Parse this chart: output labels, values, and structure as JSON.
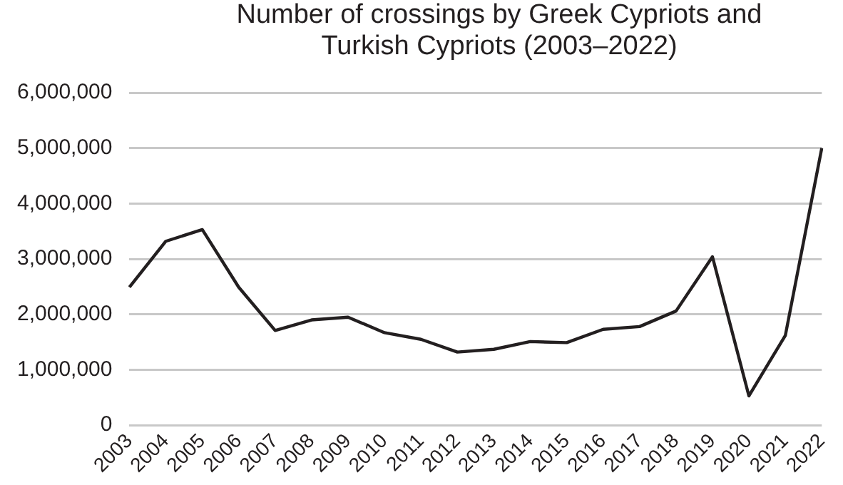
{
  "chart_data": {
    "type": "line",
    "title": "Number of crossings by Greek Cypriots and Turkish Cypriots (2003–2022)",
    "categories": [
      "2003",
      "2004",
      "2005",
      "2006",
      "2007",
      "2008",
      "2009",
      "2010",
      "2011",
      "2012",
      "2013",
      "2014",
      "2015",
      "2016",
      "2017",
      "2018",
      "2019",
      "2020",
      "2021",
      "2022"
    ],
    "series": [
      {
        "color": "#231f20",
        "values": [
          2490000,
          3320000,
          3530000,
          2490000,
          1710000,
          1900000,
          1950000,
          1670000,
          1550000,
          1320000,
          1370000,
          1510000,
          1490000,
          1730000,
          1780000,
          2060000,
          3040000,
          530000,
          1620000,
          5000000
        ]
      }
    ],
    "ylim": [
      0,
      6000000
    ],
    "yticks": [
      {
        "value": 0,
        "label": "0"
      },
      {
        "value": 1000000,
        "label": "1,000,000"
      },
      {
        "value": 2000000,
        "label": "2,000,000"
      },
      {
        "value": 3000000,
        "label": "3,000,000"
      },
      {
        "value": 4000000,
        "label": "4,000,000"
      },
      {
        "value": 5000000,
        "label": "5,000,000"
      },
      {
        "value": 6000000,
        "label": "6,000,000"
      }
    ],
    "grid": "y",
    "legend": false,
    "marker": "none",
    "line_style": "solid"
  }
}
